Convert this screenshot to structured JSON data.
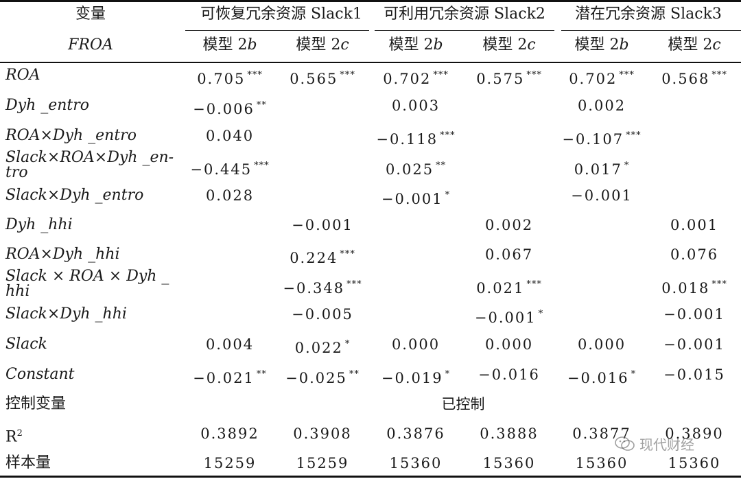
{
  "header": {
    "col0_line1": "变量",
    "col0_line2": "FROA",
    "groups": [
      "可恢复冗余资源 Slack1",
      "可利用冗余资源 Slack2",
      "潜在冗余资源 Slack3"
    ],
    "models": [
      "模型 2b",
      "模型 2c",
      "模型 2b",
      "模型 2c",
      "模型 2b",
      "模型 2c"
    ]
  },
  "rows": [
    {
      "label": "ROA",
      "italic": true,
      "values": [
        "0.705",
        "0.565",
        "0.702",
        "0.575",
        "0.702",
        "0.568"
      ],
      "stars": [
        "***",
        "***",
        "***",
        "***",
        "***",
        "***"
      ]
    },
    {
      "label": "Dyh _entro",
      "italic": true,
      "values": [
        "−0.006",
        "",
        "0.003",
        "",
        "0.002",
        ""
      ],
      "stars": [
        "**",
        "",
        "",
        "",
        "",
        ""
      ]
    },
    {
      "label": "ROA×Dyh _entro",
      "italic": true,
      "values": [
        "0.040",
        "",
        "−0.118",
        "",
        "−0.107",
        ""
      ],
      "stars": [
        "",
        "",
        "***",
        "",
        "***",
        ""
      ]
    },
    {
      "label": "Slack×ROA×Dyh _en-",
      "label2": "tro",
      "italic": true,
      "values": [
        "−0.445",
        "",
        "0.025",
        "",
        "0.017",
        ""
      ],
      "stars": [
        "***",
        "",
        "**",
        "",
        "*",
        ""
      ]
    },
    {
      "label": "Slack×Dyh _entro",
      "italic": true,
      "values": [
        "0.028",
        "",
        "−0.001",
        "",
        "−0.001",
        ""
      ],
      "stars": [
        "",
        "",
        "*",
        "",
        "",
        ""
      ]
    },
    {
      "label": "Dyh _hhi",
      "italic": true,
      "values": [
        "",
        "−0.001",
        "",
        "0.002",
        "",
        "0.001"
      ],
      "stars": [
        "",
        "",
        "",
        "",
        "",
        ""
      ]
    },
    {
      "label": "ROA×Dyh _hhi",
      "italic": true,
      "values": [
        "",
        "0.224",
        "",
        "0.067",
        "",
        "0.076"
      ],
      "stars": [
        "",
        "***",
        "",
        "",
        "",
        ""
      ]
    },
    {
      "label": "Slack × ROA × Dyh _",
      "label2": "hhi",
      "italic": true,
      "values": [
        "",
        "−0.348",
        "",
        "0.021",
        "",
        "0.018"
      ],
      "stars": [
        "",
        "***",
        "",
        "***",
        "",
        "***"
      ]
    },
    {
      "label": "Slack×Dyh _hhi",
      "italic": true,
      "values": [
        "",
        "−0.005",
        "",
        "−0.001",
        "",
        "−0.001"
      ],
      "stars": [
        "",
        "",
        "",
        "*",
        "",
        ""
      ]
    },
    {
      "label": "Slack",
      "italic": true,
      "values": [
        "0.004",
        "0.022",
        "0.000",
        "0.000",
        "0.000",
        "−0.001"
      ],
      "stars": [
        "",
        "*",
        "",
        "",
        "",
        ""
      ]
    },
    {
      "label": "Constant",
      "italic": true,
      "values": [
        "−0.021",
        "−0.025",
        "−0.019",
        "−0.016",
        "−0.016",
        "−0.015"
      ],
      "stars": [
        "**",
        "**",
        "*",
        "",
        "*",
        ""
      ]
    },
    {
      "label": "控制变量",
      "italic": false,
      "span_text": "已控制"
    },
    {
      "label": "R",
      "sup": "2",
      "italic": false,
      "values": [
        "0.3892",
        "0.3908",
        "0.3876",
        "0.3888",
        "0.3877",
        "0.3890"
      ],
      "stars": [
        "",
        "",
        "",
        "",
        "",
        ""
      ]
    },
    {
      "label": "样本量",
      "italic": false,
      "values": [
        "15259",
        "15259",
        "15360",
        "15360",
        "15360",
        "15360"
      ],
      "stars": [
        "",
        "",
        "",
        "",
        "",
        ""
      ]
    }
  ],
  "watermark": {
    "text": "现代财经",
    "icon": "wechat-icon"
  }
}
